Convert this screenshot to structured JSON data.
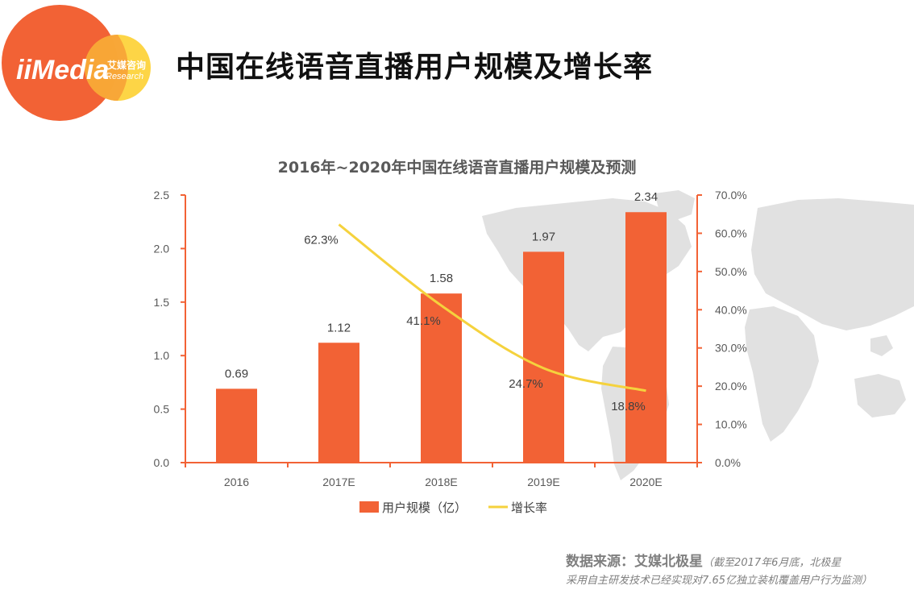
{
  "logo": {
    "brand_text": "iiMedia",
    "cn_text": "艾媒咨询",
    "sub_text": "Research"
  },
  "page_title": "中国在线语音直播用户规模及增长率",
  "chart_data": {
    "type": "bar",
    "title": "2016年~2020年中国在线语音直播用户规模及预测",
    "categories": [
      "2016",
      "2017E",
      "2018E",
      "2019E",
      "2020E"
    ],
    "series": [
      {
        "name": "用户规模（亿）",
        "type": "bar",
        "axis": "left",
        "values": [
          0.69,
          1.12,
          1.58,
          1.97,
          2.34
        ],
        "labels": [
          "0.69",
          "1.12",
          "1.58",
          "1.97",
          "2.34"
        ],
        "color": "#f26235"
      },
      {
        "name": "增长率",
        "type": "line",
        "axis": "right",
        "values": [
          null,
          62.3,
          41.1,
          24.7,
          18.8
        ],
        "labels": [
          "",
          "62.3%",
          "41.1%",
          "24.7%",
          "18.8%"
        ],
        "color": "#f5d23d"
      }
    ],
    "y_left": {
      "min": 0,
      "max": 2.5,
      "ticks": [
        "0.0",
        "0.5",
        "1.0",
        "1.5",
        "2.0",
        "2.5"
      ]
    },
    "y_right": {
      "min": 0,
      "max": 70,
      "ticks": [
        "0.0%",
        "10.0%",
        "20.0%",
        "30.0%",
        "40.0%",
        "50.0%",
        "60.0%",
        "70.0%"
      ]
    },
    "grid": false,
    "legend_position": "bottom",
    "axis_color": "#f26235"
  },
  "source": {
    "label": "数据来源：艾媒北极星",
    "note": "（截至2017年6月底，北极星",
    "note2": "采用自主研发技术已经实现对7.65亿独立装机覆盖用户行为监测）"
  }
}
